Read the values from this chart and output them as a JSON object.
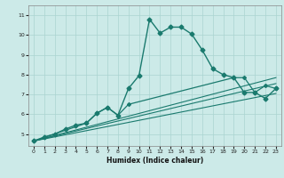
{
  "title": "",
  "xlabel": "Humidex (Indice chaleur)",
  "bg_color": "#cceae8",
  "grid_color": "#aad4d0",
  "line_color": "#1a7a6e",
  "spine_color": "#888888",
  "xlim": [
    -0.5,
    23.5
  ],
  "ylim": [
    4.4,
    11.5
  ],
  "xticks": [
    0,
    1,
    2,
    3,
    4,
    5,
    6,
    7,
    8,
    9,
    10,
    11,
    12,
    13,
    14,
    15,
    16,
    17,
    18,
    19,
    20,
    21,
    22,
    23
  ],
  "yticks": [
    5,
    6,
    7,
    8,
    9,
    10,
    11
  ],
  "curve1_x": [
    0,
    1,
    2,
    3,
    4,
    5,
    6,
    7,
    8,
    9,
    10,
    11,
    12,
    13,
    14,
    15,
    16,
    17,
    18,
    19,
    20,
    21,
    22,
    23
  ],
  "curve1_y": [
    4.65,
    4.85,
    5.0,
    5.25,
    5.45,
    5.55,
    6.05,
    6.35,
    5.95,
    7.3,
    7.95,
    10.8,
    10.1,
    10.4,
    10.4,
    10.05,
    9.25,
    8.3,
    8.0,
    7.85,
    7.1,
    7.1,
    6.8,
    7.3
  ],
  "line1_x": [
    0,
    23
  ],
  "line1_y": [
    4.65,
    7.55
  ],
  "line2_x": [
    0,
    23
  ],
  "line2_y": [
    4.65,
    7.05
  ],
  "line3_x": [
    0,
    23
  ],
  "line3_y": [
    4.65,
    7.85
  ],
  "seg1_x": [
    0,
    5,
    6,
    7,
    8,
    9,
    19,
    20,
    21,
    22,
    23
  ],
  "seg1_y": [
    4.65,
    5.55,
    6.05,
    6.35,
    5.95,
    6.5,
    7.85,
    7.85,
    7.1,
    7.45,
    7.3
  ]
}
